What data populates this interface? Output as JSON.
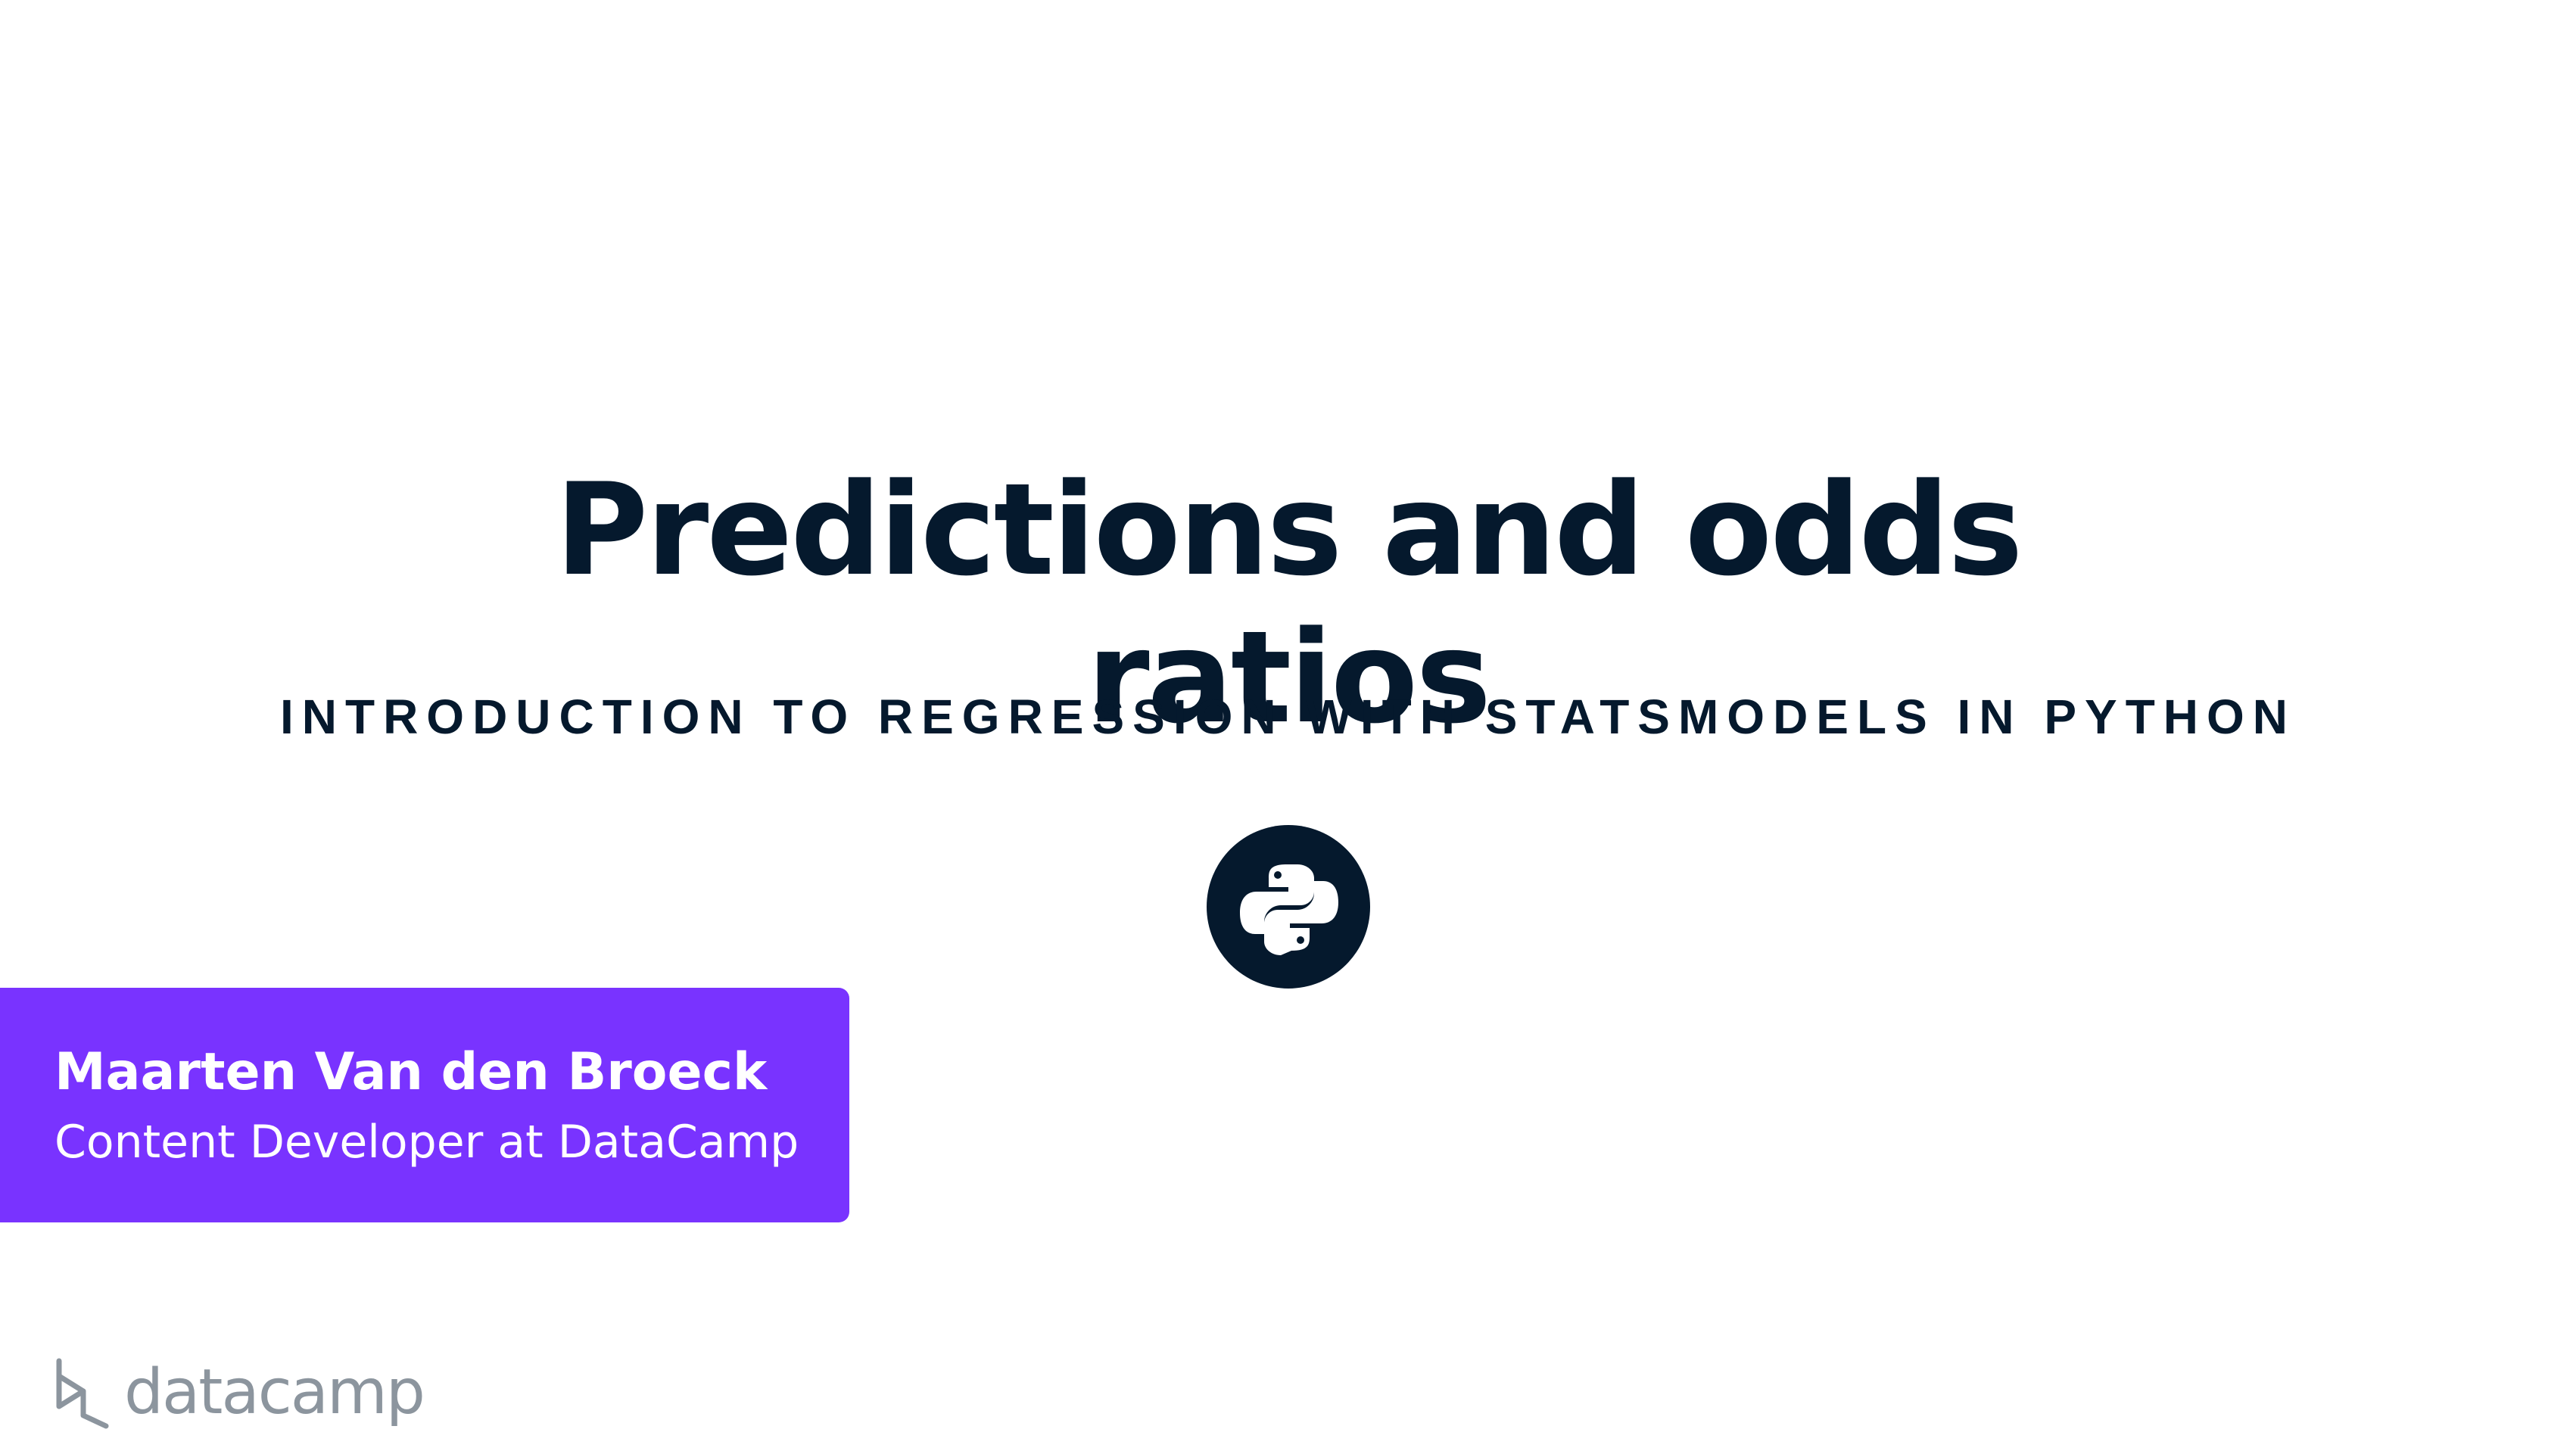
{
  "slide": {
    "title_line1": "Predictions and odds",
    "title_line2": "ratios",
    "course": "INTRODUCTION TO REGRESSION WITH STATSMODELS IN PYTHON"
  },
  "author": {
    "name": "Maarten Van den Broeck",
    "role": "Content Developer at DataCamp"
  },
  "brand": {
    "logo_text": "datacamp",
    "logo_icon": "datacamp-logo-icon",
    "badge_icon": "python-icon"
  },
  "colors": {
    "text": "#05192d",
    "accent": "#7933ff",
    "logo_gray": "#8c959e",
    "background": "#ffffff"
  }
}
